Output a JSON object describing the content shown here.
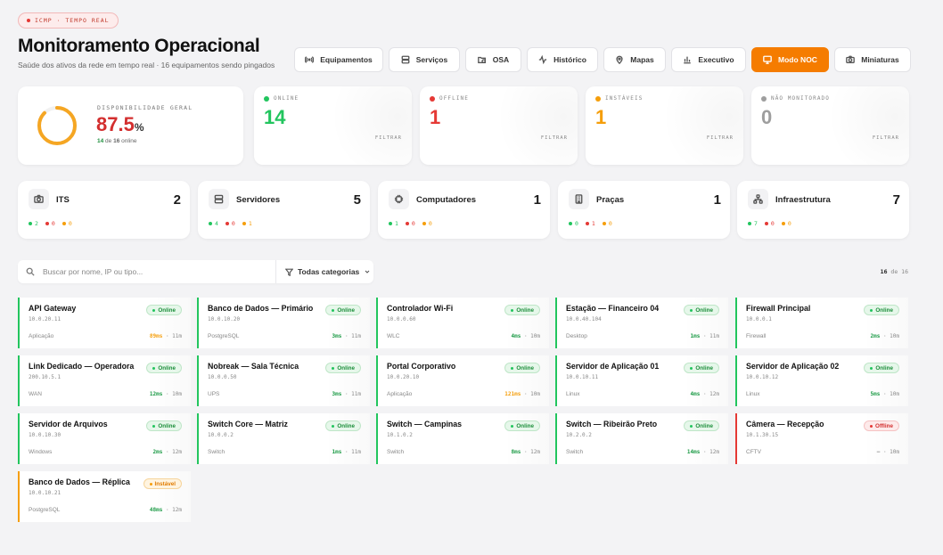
{
  "live_badge": "ICMP · TEMPO REAL",
  "header": {
    "title": "Monitoramento Operacional",
    "subtitle": "Saúde dos ativos da rede em tempo real · 16 equipamentos sendo pingados"
  },
  "nav": [
    {
      "label": "Equipamentos",
      "icon": "radio-signal-icon"
    },
    {
      "label": "Serviços",
      "icon": "server-icon"
    },
    {
      "label": "OSA",
      "icon": "folder-clock-icon"
    },
    {
      "label": "Histórico",
      "icon": "activity-icon"
    },
    {
      "label": "Mapas",
      "icon": "map-pin-icon"
    },
    {
      "label": "Executivo",
      "icon": "bar-chart-icon"
    },
    {
      "label": "Modo NOC",
      "icon": "monitor-icon",
      "active": true
    },
    {
      "label": "Miniaturas",
      "icon": "camera-icon"
    }
  ],
  "availability": {
    "label": "DISPONIBILIDADE GERAL",
    "value": "87.5",
    "unit": "%",
    "fraction": 0.875,
    "online": "14",
    "of_word": "de",
    "total": "16",
    "online_word": "online"
  },
  "stats": [
    {
      "label": "ONLINE",
      "value": "14",
      "color": "#22c55e",
      "filter": "FILTRAR"
    },
    {
      "label": "OFFLINE",
      "value": "1",
      "color": "#e53935",
      "filter": "FILTRAR"
    },
    {
      "label": "INSTÁVEIS",
      "value": "1",
      "color": "#f59e0b",
      "filter": "FILTRAR"
    },
    {
      "label": "NÃO MONITORADO",
      "value": "0",
      "color": "#9e9e9e",
      "filter": "FILTRAR"
    }
  ],
  "categories": [
    {
      "name": "ITS",
      "count": "2",
      "icon": "camera-icon",
      "on": "2",
      "off": "0",
      "un": "0"
    },
    {
      "name": "Servidores",
      "count": "5",
      "icon": "server-icon",
      "on": "4",
      "off": "0",
      "un": "1"
    },
    {
      "name": "Computadores",
      "count": "1",
      "icon": "cpu-icon",
      "on": "1",
      "off": "0",
      "un": "0"
    },
    {
      "name": "Praças",
      "count": "1",
      "icon": "building-icon",
      "on": "0",
      "off": "1",
      "un": "0"
    },
    {
      "name": "Infraestrutura",
      "count": "7",
      "icon": "network-icon",
      "on": "7",
      "off": "0",
      "un": "0"
    }
  ],
  "search": {
    "placeholder": "Buscar por nome, IP ou tipo...",
    "filter_label": "Todas categorias"
  },
  "count": {
    "shown": "16",
    "of_word": "de",
    "total": "16"
  },
  "devices": [
    {
      "name": "API Gateway",
      "ip": "10.0.20.11",
      "type": "Aplicação",
      "status": "Online",
      "latency": "89ms",
      "age": "· 11m",
      "lat_color": "o"
    },
    {
      "name": "Banco de Dados — Primário",
      "ip": "10.0.10.20",
      "type": "PostgreSQL",
      "status": "Online",
      "latency": "3ms",
      "age": "· 11m",
      "lat_color": "g"
    },
    {
      "name": "Controlador Wi-Fi",
      "ip": "10.0.0.60",
      "type": "WLC",
      "status": "Online",
      "latency": "4ms",
      "age": "· 10m",
      "lat_color": "g"
    },
    {
      "name": "Estação — Financeiro 04",
      "ip": "10.0.40.104",
      "type": "Desktop",
      "status": "Online",
      "latency": "1ms",
      "age": "· 11m",
      "lat_color": "g"
    },
    {
      "name": "Firewall Principal",
      "ip": "10.0.0.1",
      "type": "Firewall",
      "status": "Online",
      "latency": "2ms",
      "age": "· 10m",
      "lat_color": "g"
    },
    {
      "name": "Link Dedicado — Operadora",
      "ip": "200.10.5.1",
      "type": "WAN",
      "status": "Online",
      "latency": "12ms",
      "age": "· 10m",
      "lat_color": "g"
    },
    {
      "name": "Nobreak — Sala Técnica",
      "ip": "10.0.0.50",
      "type": "UPS",
      "status": "Online",
      "latency": "3ms",
      "age": "· 11m",
      "lat_color": "g"
    },
    {
      "name": "Portal Corporativo",
      "ip": "10.0.20.10",
      "type": "Aplicação",
      "status": "Online",
      "latency": "121ms",
      "age": "· 10m",
      "lat_color": "o"
    },
    {
      "name": "Servidor de Aplicação 01",
      "ip": "10.0.10.11",
      "type": "Linux",
      "status": "Online",
      "latency": "4ms",
      "age": "· 12m",
      "lat_color": "g"
    },
    {
      "name": "Servidor de Aplicação 02",
      "ip": "10.0.10.12",
      "type": "Linux",
      "status": "Online",
      "latency": "5ms",
      "age": "· 10m",
      "lat_color": "g"
    },
    {
      "name": "Servidor de Arquivos",
      "ip": "10.0.10.30",
      "type": "Windows",
      "status": "Online",
      "latency": "2ms",
      "age": "· 12m",
      "lat_color": "g"
    },
    {
      "name": "Switch Core — Matriz",
      "ip": "10.0.0.2",
      "type": "Switch",
      "status": "Online",
      "latency": "1ms",
      "age": "· 11m",
      "lat_color": "g"
    },
    {
      "name": "Switch — Campinas",
      "ip": "10.1.0.2",
      "type": "Switch",
      "status": "Online",
      "latency": "8ms",
      "age": "· 12m",
      "lat_color": "g"
    },
    {
      "name": "Switch — Ribeirão Preto",
      "ip": "10.2.0.2",
      "type": "Switch",
      "status": "Online",
      "latency": "14ms",
      "age": "· 12m",
      "lat_color": "g"
    },
    {
      "name": "Câmera — Recepção",
      "ip": "10.1.30.15",
      "type": "CFTV",
      "status": "Offline",
      "latency": "—",
      "age": "· 10m",
      "lat_color": ""
    },
    {
      "name": "Banco de Dados — Réplica",
      "ip": "10.0.10.21",
      "type": "PostgreSQL",
      "status": "Instável",
      "latency": "48ms",
      "age": "· 12m",
      "lat_color": "g"
    }
  ]
}
